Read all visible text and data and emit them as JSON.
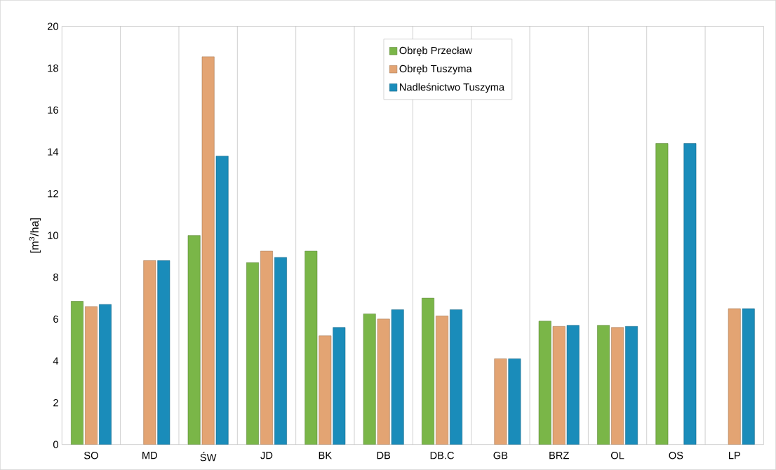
{
  "chart_data": {
    "type": "bar",
    "ylabel": "[m$^{3}$/ha]",
    "categories": [
      "SO",
      "MD",
      "ŚW",
      "JD",
      "BK",
      "DB",
      "DB.C",
      "GB",
      "BRZ",
      "OL",
      "OS",
      "LP"
    ],
    "series": [
      {
        "name": "Obręb Przecław",
        "color": "#7ab648",
        "values": [
          6.85,
          null,
          10.0,
          8.7,
          9.25,
          6.25,
          7.0,
          null,
          5.9,
          5.7,
          14.4,
          null
        ]
      },
      {
        "name": "Obręb Tuszyma",
        "color": "#e3a473",
        "values": [
          6.6,
          8.8,
          18.55,
          9.25,
          5.2,
          6.0,
          6.15,
          4.1,
          5.65,
          5.6,
          null,
          6.5
        ]
      },
      {
        "name": "Nadleśnictwo Tuszyma",
        "color": "#1a8cba",
        "values": [
          6.7,
          8.8,
          13.8,
          8.95,
          5.6,
          6.45,
          6.45,
          4.1,
          5.7,
          5.65,
          14.4,
          6.5
        ]
      }
    ],
    "ylim": [
      0,
      20
    ],
    "yticks": [
      0,
      2,
      4,
      6,
      8,
      10,
      12,
      14,
      16,
      18,
      20
    ],
    "grid": "x",
    "legend": "top"
  }
}
